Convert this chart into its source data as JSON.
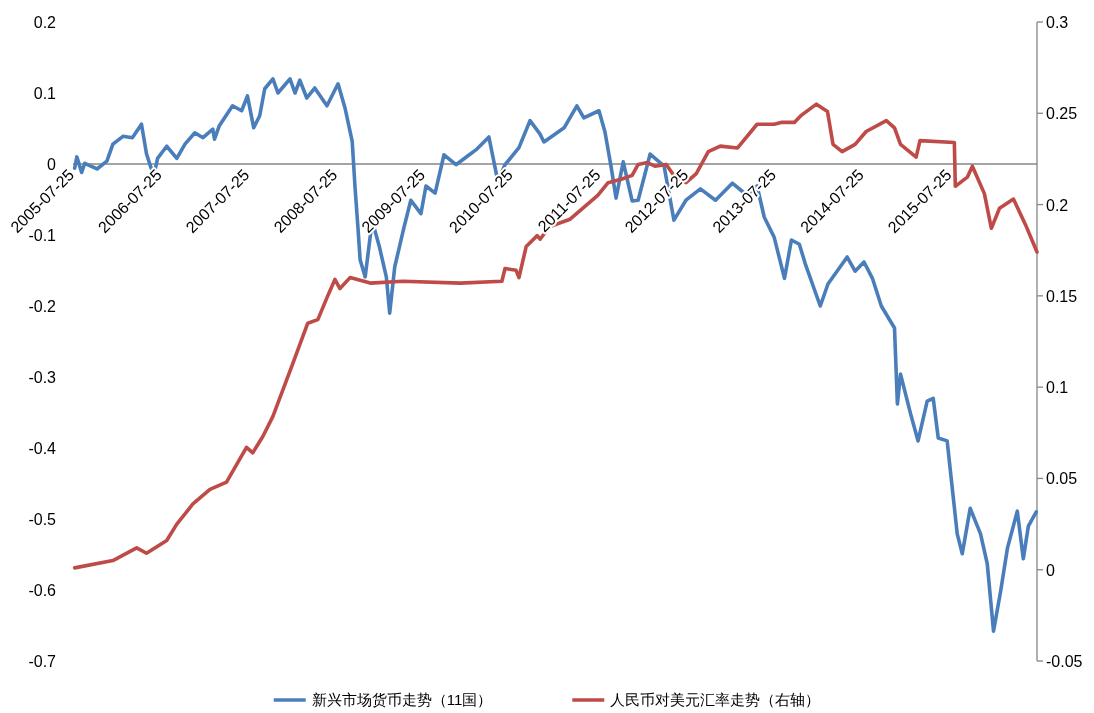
{
  "chart_data": {
    "type": "line",
    "legend": "bottom",
    "marker": "none",
    "line_style": "solid",
    "xlim": [
      "2005-07-25",
      "2016-07-19"
    ],
    "xticks": [
      "2005-07-25",
      "2006-07-25",
      "2007-07-25",
      "2008-07-25",
      "2009-07-25",
      "2010-07-25",
      "2011-07-25",
      "2012-07-25",
      "2013-07-25",
      "2014-07-25",
      "2015-07-25"
    ],
    "ylim": [
      -0.7,
      0.2
    ],
    "yticks": [
      -0.7,
      -0.6,
      -0.5,
      -0.4,
      -0.3,
      -0.2,
      -0.1,
      0,
      0.1,
      0.2
    ],
    "y2lim": [
      -0.05,
      0.3
    ],
    "y2ticks": [
      -0.05,
      0,
      0.05,
      0.1,
      0.15,
      0.2,
      0.25,
      0.3
    ],
    "series": [
      {
        "name": "新兴市场货币走势（11国）",
        "color": "#4a7ebb",
        "x": [
          "2005-08-01",
          "2005-08-10",
          "2005-08-30",
          "2005-09-12",
          "2005-11-02",
          "2005-12-13",
          "2006-01-07",
          "2006-02-18",
          "2006-03-29",
          "2006-05-06",
          "2006-05-27",
          "2006-06-26",
          "2006-07-12",
          "2006-08-19",
          "2006-09-30",
          "2006-11-03",
          "2006-12-14",
          "2007-01-17",
          "2007-02-27",
          "2007-03-06",
          "2007-03-26",
          "2007-05-20",
          "2007-06-27",
          "2007-07-21",
          "2007-08-16",
          "2007-09-10",
          "2007-10-01",
          "2007-11-04",
          "2007-11-25",
          "2008-01-14",
          "2008-02-04",
          "2008-02-24",
          "2008-03-24",
          "2008-04-26",
          "2008-06-16",
          "2008-08-01",
          "2008-08-30",
          "2008-09-29",
          "2008-10-11",
          "2008-10-23",
          "2008-11-01",
          "2008-11-22",
          "2008-12-21",
          "2009-01-19",
          "2009-02-18",
          "2009-03-04",
          "2009-03-25",
          "2009-05-02",
          "2009-05-31",
          "2009-07-12",
          "2009-08-02",
          "2009-09-09",
          "2009-10-16",
          "2009-12-05",
          "2010-01-21",
          "2010-03-02",
          "2010-04-21",
          "2010-05-28",
          "2010-06-27",
          "2010-08-24",
          "2010-10-09",
          "2010-11-20",
          "2010-12-06",
          "2011-02-28",
          "2011-04-22",
          "2011-05-21",
          "2011-07-23",
          "2011-08-17",
          "2011-09-11",
          "2011-10-02",
          "2011-11-01",
          "2011-12-08",
          "2012-01-02",
          "2012-02-21",
          "2012-04-19",
          "2012-05-30",
          "2012-07-19",
          "2012-09-17",
          "2012-11-19",
          "2013-01-28",
          "2013-03-30",
          "2013-05-11",
          "2013-06-10",
          "2013-07-21",
          "2013-09-02",
          "2013-10-01",
          "2013-11-03",
          "2013-11-28",
          "2014-01-29",
          "2014-03-02",
          "2014-05-21",
          "2014-06-23",
          "2014-07-30",
          "2014-09-03",
          "2014-10-10",
          "2014-12-04",
          "2014-12-16",
          "2014-12-29",
          "2015-02-09",
          "2015-03-12",
          "2015-04-19",
          "2015-05-14",
          "2015-06-04",
          "2015-07-11",
          "2015-08-22",
          "2015-09-12",
          "2015-10-15",
          "2015-11-27",
          "2015-12-25",
          "2016-01-20",
          "2016-02-19",
          "2016-03-18",
          "2016-04-28",
          "2016-05-23",
          "2016-06-13",
          "2016-07-16"
        ],
        "values": [
          -0.006,
          0.01,
          -0.012,
          0.001,
          -0.007,
          0.004,
          0.028,
          0.039,
          0.037,
          0.056,
          0.014,
          -0.017,
          0.008,
          0.025,
          0.008,
          0.028,
          0.044,
          0.037,
          0.049,
          0.035,
          0.054,
          0.082,
          0.075,
          0.096,
          0.051,
          0.068,
          0.106,
          0.12,
          0.1,
          0.12,
          0.1,
          0.118,
          0.093,
          0.107,
          0.082,
          0.113,
          0.079,
          0.032,
          -0.034,
          -0.09,
          -0.135,
          -0.159,
          -0.08,
          -0.115,
          -0.159,
          -0.21,
          -0.145,
          -0.09,
          -0.051,
          -0.07,
          -0.031,
          -0.041,
          0.013,
          -0.001,
          0.011,
          0.021,
          0.038,
          -0.024,
          -0.001,
          0.023,
          0.061,
          0.042,
          0.031,
          0.051,
          0.082,
          0.065,
          0.075,
          0.045,
          -0.003,
          -0.048,
          0.003,
          -0.052,
          -0.051,
          0.014,
          -0.003,
          -0.079,
          -0.051,
          -0.035,
          -0.051,
          -0.027,
          -0.044,
          -0.031,
          -0.075,
          -0.103,
          -0.161,
          -0.107,
          -0.113,
          -0.141,
          -0.2,
          -0.169,
          -0.131,
          -0.151,
          -0.138,
          -0.161,
          -0.2,
          -0.231,
          -0.338,
          -0.296,
          -0.352,
          -0.39,
          -0.334,
          -0.33,
          -0.386,
          -0.39,
          -0.521,
          -0.549,
          -0.485,
          -0.521,
          -0.563,
          -0.658,
          -0.601,
          -0.541,
          -0.489,
          -0.556,
          -0.51,
          -0.49
        ]
      },
      {
        "name": "人民币对美元汇率走势（右轴）",
        "color": "#be4b48",
        "axis": "y2",
        "x": [
          "2005-08-01",
          "2006-01-07",
          "2006-04-16",
          "2006-05-27",
          "2006-08-19",
          "2006-09-30",
          "2006-12-06",
          "2007-02-15",
          "2007-04-25",
          "2007-07-17",
          "2007-08-12",
          "2007-09-23",
          "2007-11-04",
          "2008-01-26",
          "2008-03-28",
          "2008-05-09",
          "2008-06-16",
          "2008-07-19",
          "2008-08-09",
          "2008-09-20",
          "2008-12-13",
          "2009-04-28",
          "2009-12-22",
          "2010-06-14",
          "2010-06-27",
          "2010-08-12",
          "2010-08-24",
          "2010-09-23",
          "2010-11-08",
          "2010-11-20",
          "2010-12-30",
          "2011-03-25",
          "2011-07-18",
          "2011-08-30",
          "2011-10-27",
          "2011-12-08",
          "2012-01-02",
          "2012-02-09",
          "2012-03-12",
          "2012-04-28",
          "2012-06-09",
          "2012-07-19",
          "2012-08-31",
          "2012-10-20",
          "2012-12-09",
          "2013-02-19",
          "2013-05-11",
          "2013-07-21",
          "2013-08-19",
          "2013-10-13",
          "2013-11-12",
          "2014-01-13",
          "2014-02-28",
          "2014-03-23",
          "2014-04-30",
          "2014-06-23",
          "2014-08-08",
          "2014-10-31",
          "2014-12-04",
          "2014-12-29",
          "2015-03-04",
          "2015-03-20",
          "2015-08-10",
          "2015-08-14",
          "2015-10-03",
          "2015-10-24",
          "2015-12-13",
          "2016-01-11",
          "2016-02-14",
          "2016-04-12",
          "2016-06-01",
          "2016-07-19"
        ],
        "values": [
          0.001,
          0.005,
          0.012,
          0.009,
          0.016,
          0.025,
          0.036,
          0.044,
          0.048,
          0.067,
          0.064,
          0.073,
          0.084,
          0.113,
          0.135,
          0.137,
          0.149,
          0.159,
          0.154,
          0.16,
          0.157,
          0.158,
          0.157,
          0.158,
          0.165,
          0.164,
          0.16,
          0.177,
          0.183,
          0.181,
          0.188,
          0.192,
          0.205,
          0.212,
          0.214,
          0.216,
          0.222,
          0.223,
          0.221,
          0.222,
          0.214,
          0.212,
          0.217,
          0.229,
          0.232,
          0.231,
          0.244,
          0.244,
          0.245,
          0.245,
          0.249,
          0.255,
          0.251,
          0.233,
          0.229,
          0.233,
          0.24,
          0.246,
          0.242,
          0.233,
          0.226,
          0.235,
          0.234,
          0.21,
          0.215,
          0.221,
          0.206,
          0.187,
          0.198,
          0.203,
          0.189,
          0.174
        ]
      }
    ]
  }
}
